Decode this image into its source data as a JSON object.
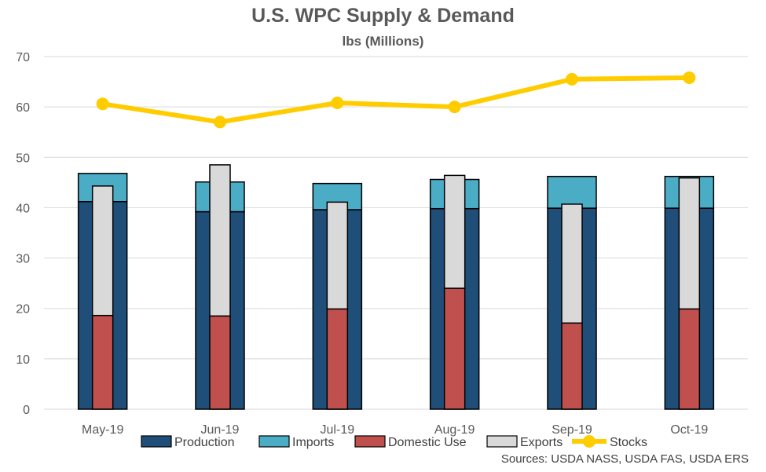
{
  "chart_data": {
    "type": "bar",
    "title": "U.S. WPC Supply & Demand",
    "subtitle": "lbs (Millions)",
    "source": "Sources: USDA NASS, USDA FAS, USDA ERS",
    "categories": [
      "May-19",
      "Jun-19",
      "Jul-19",
      "Aug-19",
      "Sep-19",
      "Oct-19"
    ],
    "ylim": [
      0,
      70
    ],
    "yticks": [
      0,
      10,
      20,
      30,
      40,
      50,
      60,
      70
    ],
    "grid": true,
    "legend_position": "bottom",
    "series": [
      {
        "name": "Production",
        "kind": "supply-stack",
        "color": "#1F4E79",
        "values": [
          41.2,
          39.2,
          39.6,
          39.8,
          39.9,
          39.9
        ]
      },
      {
        "name": "Imports",
        "kind": "supply-stack",
        "color": "#4BACC6",
        "values": [
          5.6,
          5.9,
          5.2,
          5.8,
          6.3,
          6.3
        ]
      },
      {
        "name": "Domestic Use",
        "kind": "demand-stack",
        "color": "#C0504D",
        "values": [
          18.6,
          18.5,
          19.9,
          24.0,
          17.1,
          19.9
        ]
      },
      {
        "name": "Exports",
        "kind": "demand-stack",
        "color": "#D9D9D9",
        "values": [
          25.7,
          30.0,
          21.2,
          22.4,
          23.6,
          26.0
        ]
      },
      {
        "name": "Stocks",
        "kind": "line",
        "color": "#FFCC00",
        "values": [
          60.6,
          57.0,
          60.8,
          60.0,
          65.5,
          65.8
        ]
      }
    ]
  }
}
